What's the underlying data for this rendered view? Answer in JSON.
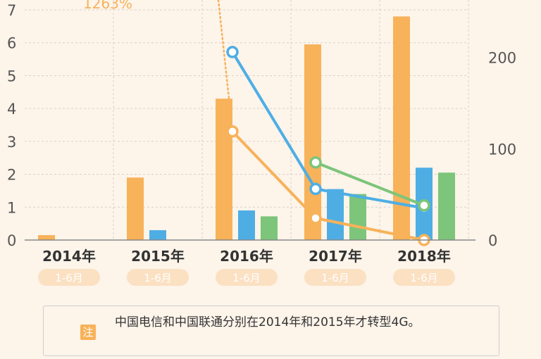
{
  "chart_data": {
    "type": "bar",
    "categories": [
      "2014年",
      "2015年",
      "2016年",
      "2017年",
      "2018年"
    ],
    "category_sublabels": [
      "1-6月",
      "1-6月",
      "1-6月",
      "1-6月",
      "1-6月"
    ],
    "yticks_left": [
      "0",
      "1",
      "2",
      "3",
      "4",
      "5",
      "6",
      "7"
    ],
    "yticks_right": [
      "0",
      "100",
      "200"
    ],
    "ylim_left": [
      0,
      7.3
    ],
    "ylim_right": [
      0,
      263
    ],
    "series": [
      {
        "values": [
          0.15,
          1.9,
          4.3,
          5.95,
          6.8
        ],
        "color": "#f7b25a",
        "axis": "left"
      },
      {
        "values": [
          null,
          0.3,
          0.9,
          1.55,
          2.2
        ],
        "color": "#4eaee4",
        "axis": "left"
      },
      {
        "values": [
          null,
          null,
          0.72,
          1.4,
          2.05
        ],
        "color": "#7cc57a",
        "axis": "left"
      }
    ],
    "lines": [
      {
        "x_index": [
          2,
          3,
          4
        ],
        "values": [
          206,
          56,
          35
        ],
        "color": "#4eaee4",
        "axis": "right"
      },
      {
        "x_index": [
          3,
          4
        ],
        "values": [
          85,
          38
        ],
        "color": "#7cc57a",
        "axis": "right"
      },
      {
        "x_index": [
          2,
          3,
          4
        ],
        "values": [
          119,
          24,
          0
        ],
        "color": "#f7b25a",
        "axis": "right"
      }
    ],
    "annotation": "1263%",
    "grid": true
  },
  "note": {
    "badge": "注",
    "text": "中国电信和中国联通分别在2014年和2015年才转型4G。"
  }
}
